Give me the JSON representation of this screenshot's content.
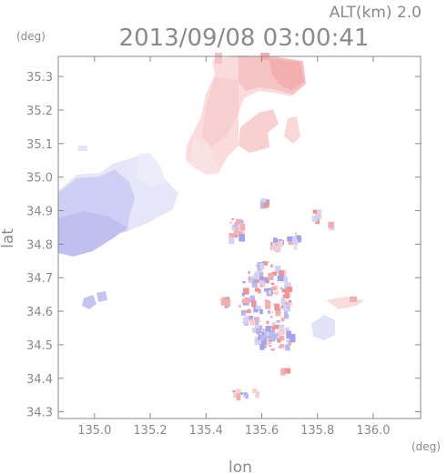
{
  "chart_data": {
    "type": "heatmap",
    "title": "2013/09/08 03:00:41",
    "subtitle": "ALT(km) 2.0",
    "xlabel": "lon",
    "ylabel": "lat",
    "xunit": "(deg)",
    "yunit": "(deg)",
    "xlim": [
      134.87,
      136.17
    ],
    "ylim": [
      34.28,
      35.36
    ],
    "xticks": [
      135.0,
      135.2,
      135.4,
      135.6,
      135.8,
      136.0
    ],
    "yticks": [
      34.3,
      34.4,
      34.5,
      34.6,
      34.7,
      34.8,
      34.9,
      35.0,
      35.1,
      35.2,
      35.3
    ],
    "xtick_labels": [
      "135.0",
      "135.2",
      "135.4",
      "135.6",
      "135.8",
      "136.0"
    ],
    "ytick_labels": [
      "34.3",
      "34.4",
      "34.5",
      "34.6",
      "34.7",
      "34.8",
      "34.9",
      "35.0",
      "35.1",
      "35.2",
      "35.3"
    ],
    "colors": {
      "positive": "#f3aeb0",
      "positive_light": "#fad6d6",
      "negative": "#b9b9f0",
      "negative_light": "#e2e2f8",
      "axis": "#8a8a8a"
    }
  }
}
